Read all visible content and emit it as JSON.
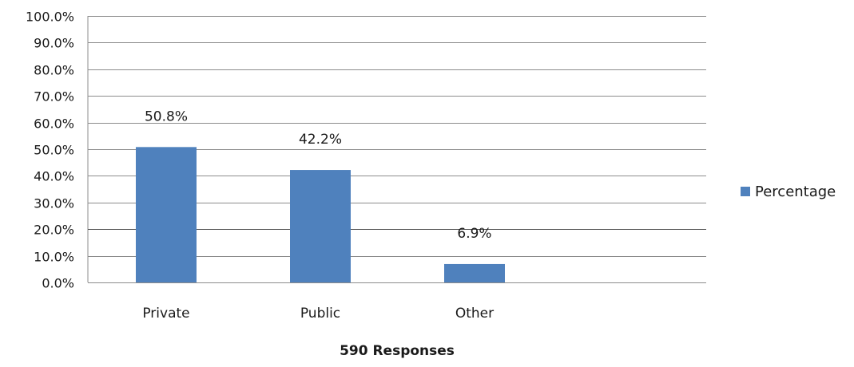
{
  "chart_data": {
    "type": "bar",
    "categories": [
      "Private",
      "Public",
      "Other"
    ],
    "series": [
      {
        "name": "Percentage",
        "values": [
          50.8,
          42.2,
          6.9
        ],
        "value_labels": [
          "50.8%",
          "42.2%",
          "6.9%"
        ],
        "color": "#4f81bd"
      }
    ],
    "ylim": [
      0,
      100
    ],
    "yticks": [
      0,
      10,
      20,
      30,
      40,
      50,
      60,
      70,
      80,
      90,
      100
    ],
    "ytick_labels": [
      "0.0%",
      "10.0%",
      "20.0%",
      "30.0%",
      "40.0%",
      "50.0%",
      "60.0%",
      "70.0%",
      "80.0%",
      "90.0%",
      "100.0%"
    ],
    "xlabel": "590 Responses",
    "ylabel": "",
    "title": "",
    "grid": true,
    "legend_position": "right",
    "colors": {
      "bar": "#4f81bd",
      "grid": "#8c8c8c",
      "axis": "#8c8c8c",
      "highlight_grid": "#4d4d4d"
    }
  }
}
